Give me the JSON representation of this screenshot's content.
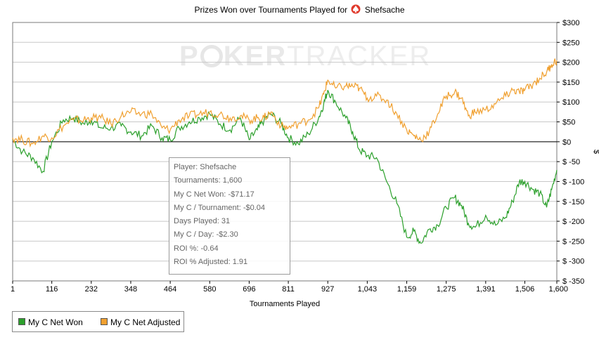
{
  "title_prefix": "Prizes Won over Tournaments Played for",
  "player_name": "Shefsache",
  "watermark": {
    "part1": "P",
    "part2": "KER",
    "part3": "TRACKER"
  },
  "colors": {
    "net_won": "#2ca02c",
    "net_adjusted": "#f0a030",
    "zero_line": "#000000",
    "grid": "#c8c8c8"
  },
  "legend": [
    {
      "label": "My C Net Won",
      "color": "#2ca02c"
    },
    {
      "label": "My C Net Adjusted",
      "color": "#f0a030"
    }
  ],
  "tooltip": {
    "player": "Player: Shefsache",
    "tournaments": "Tournaments: 1,600",
    "net_won": "My C Net Won: -$71.17",
    "per_tournament": "My C / Tournament: -$0.04",
    "days_played": "Days Played: 31",
    "per_day": "My C / Day: -$2.30",
    "roi": "ROI %: -0.64",
    "roi_adjusted": "ROI % Adjusted: 1.91"
  },
  "chart_data": {
    "type": "line",
    "title": "Prizes Won over Tournaments Played for Shefsache",
    "xlabel": "Tournaments Played",
    "ylabel": "$",
    "xlim": [
      1,
      1600
    ],
    "ylim": [
      -350,
      300
    ],
    "x_ticks": [
      1,
      116,
      232,
      348,
      464,
      580,
      696,
      811,
      927,
      1043,
      1159,
      1275,
      1391,
      1506,
      1600
    ],
    "x_tick_labels": [
      "1",
      "116",
      "232",
      "348",
      "464",
      "580",
      "696",
      "811",
      "927",
      "1,043",
      "1,159",
      "1,275",
      "1,391",
      "1,506",
      "1,600"
    ],
    "y_ticks": [
      300,
      250,
      200,
      150,
      100,
      50,
      0,
      -50,
      -100,
      -150,
      -200,
      -250,
      -300,
      -350
    ],
    "y_tick_labels": [
      "$300",
      "$250",
      "$200",
      "$150",
      "$100",
      "$50",
      "$0",
      "$ -50",
      "$ -100",
      "$ -150",
      "$ -200",
      "$ -250",
      "$ -300",
      "$ -350"
    ],
    "grid": true,
    "legend_position": "bottom-left",
    "series": [
      {
        "name": "My C Net Won",
        "color": "#2ca02c",
        "x": [
          1,
          30,
          60,
          90,
          116,
          150,
          180,
          210,
          232,
          260,
          290,
          320,
          348,
          380,
          410,
          440,
          464,
          490,
          520,
          550,
          580,
          610,
          640,
          670,
          696,
          720,
          740,
          760,
          790,
          811,
          840,
          870,
          900,
          915,
          927,
          950,
          980,
          1000,
          1020,
          1043,
          1070,
          1100,
          1130,
          1159,
          1180,
          1200,
          1225,
          1250,
          1275,
          1300,
          1320,
          1340,
          1360,
          1391,
          1420,
          1450,
          1470,
          1490,
          1506,
          1530,
          1550,
          1570,
          1585,
          1600
        ],
        "y": [
          5,
          -25,
          -40,
          -75,
          0,
          55,
          60,
          45,
          55,
          35,
          35,
          40,
          25,
          15,
          40,
          10,
          5,
          35,
          50,
          60,
          70,
          45,
          30,
          60,
          5,
          30,
          55,
          70,
          45,
          10,
          -5,
          20,
          60,
          95,
          130,
          100,
          60,
          25,
          -20,
          -35,
          -40,
          -100,
          -155,
          -240,
          -225,
          -255,
          -220,
          -210,
          -165,
          -140,
          -160,
          -205,
          -215,
          -185,
          -210,
          -190,
          -150,
          -100,
          -100,
          -120,
          -130,
          -165,
          -120,
          -71
        ]
      },
      {
        "name": "My C Net Adjusted",
        "color": "#f0a030",
        "x": [
          1,
          30,
          60,
          90,
          116,
          150,
          180,
          210,
          232,
          260,
          290,
          320,
          348,
          380,
          410,
          440,
          464,
          490,
          520,
          550,
          580,
          610,
          640,
          670,
          696,
          720,
          740,
          760,
          790,
          811,
          840,
          870,
          900,
          915,
          927,
          950,
          980,
          1000,
          1020,
          1043,
          1070,
          1100,
          1130,
          1159,
          1180,
          1200,
          1225,
          1250,
          1275,
          1300,
          1320,
          1340,
          1360,
          1391,
          1420,
          1450,
          1470,
          1490,
          1506,
          1530,
          1550,
          1570,
          1585,
          1600
        ],
        "y": [
          10,
          5,
          -5,
          15,
          10,
          40,
          55,
          55,
          60,
          60,
          45,
          65,
          75,
          70,
          70,
          35,
          30,
          55,
          65,
          70,
          75,
          70,
          60,
          65,
          55,
          60,
          60,
          75,
          40,
          35,
          45,
          55,
          85,
          120,
          155,
          135,
          140,
          140,
          135,
          110,
          115,
          105,
          70,
          30,
          15,
          5,
          25,
          70,
          115,
          125,
          110,
          65,
          75,
          80,
          95,
          115,
          130,
          125,
          130,
          145,
          160,
          175,
          195,
          205
        ]
      }
    ]
  }
}
